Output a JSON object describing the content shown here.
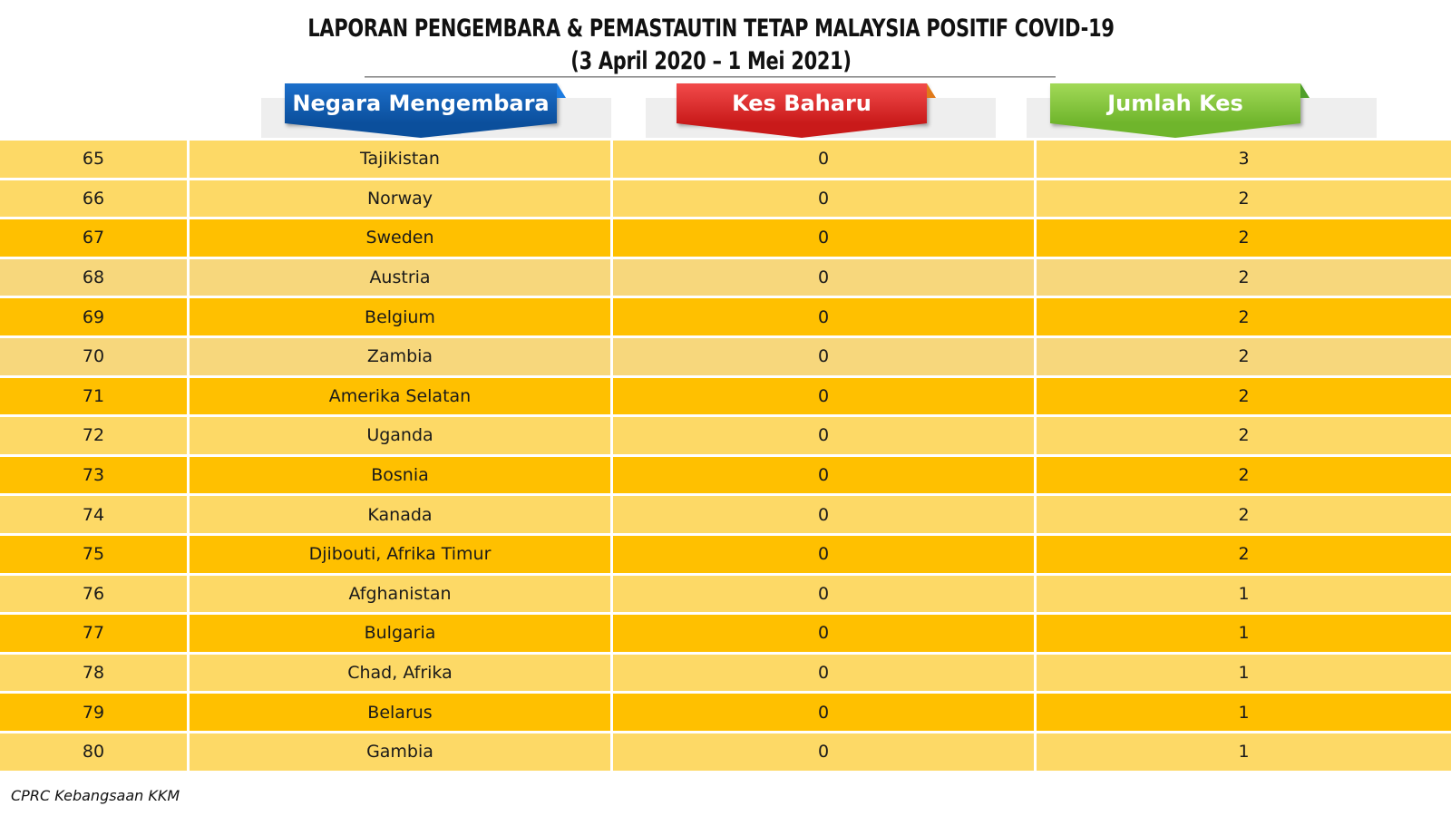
{
  "title": {
    "line1": "LAPORAN PENGEMBARA & PEMASTAUTIN TETAP MALAYSIA POSITIF COVID-19",
    "line2": "(3 April 2020 – 1 Mei 2021)"
  },
  "headers": {
    "country": "Negara Mengembara",
    "new_cases": "Kes Baharu",
    "total_cases": "Jumlah Kes"
  },
  "colors": {
    "header_country": "#0b4f9c",
    "header_new": "#c91a1a",
    "header_total": "#6fb52c",
    "row_light": "#fdd966",
    "row_dark": "#ffc000",
    "row_pale": "#f7d77c"
  },
  "rows": [
    {
      "no": "65",
      "country": "Tajikistan",
      "new": "0",
      "total": "3",
      "tone": "light"
    },
    {
      "no": "66",
      "country": "Norway",
      "new": "0",
      "total": "2",
      "tone": "light"
    },
    {
      "no": "67",
      "country": "Sweden",
      "new": "0",
      "total": "2",
      "tone": "dark"
    },
    {
      "no": "68",
      "country": "Austria",
      "new": "0",
      "total": "2",
      "tone": "pale"
    },
    {
      "no": "69",
      "country": "Belgium",
      "new": "0",
      "total": "2",
      "tone": "dark"
    },
    {
      "no": "70",
      "country": "Zambia",
      "new": "0",
      "total": "2",
      "tone": "pale"
    },
    {
      "no": "71",
      "country": "Amerika Selatan",
      "new": "0",
      "total": "2",
      "tone": "dark"
    },
    {
      "no": "72",
      "country": "Uganda",
      "new": "0",
      "total": "2",
      "tone": "light"
    },
    {
      "no": "73",
      "country": "Bosnia",
      "new": "0",
      "total": "2",
      "tone": "dark"
    },
    {
      "no": "74",
      "country": "Kanada",
      "new": "0",
      "total": "2",
      "tone": "light"
    },
    {
      "no": "75",
      "country": "Djibouti, Afrika Timur",
      "new": "0",
      "total": "2",
      "tone": "dark"
    },
    {
      "no": "76",
      "country": "Afghanistan",
      "new": "0",
      "total": "1",
      "tone": "light"
    },
    {
      "no": "77",
      "country": "Bulgaria",
      "new": "0",
      "total": "1",
      "tone": "dark"
    },
    {
      "no": "78",
      "country": "Chad, Afrika",
      "new": "0",
      "total": "1",
      "tone": "light"
    },
    {
      "no": "79",
      "country": "Belarus",
      "new": "0",
      "total": "1",
      "tone": "dark"
    },
    {
      "no": "80",
      "country": "Gambia",
      "new": "0",
      "total": "1",
      "tone": "light"
    }
  ],
  "footer": "CPRC Kebangsaan KKM"
}
